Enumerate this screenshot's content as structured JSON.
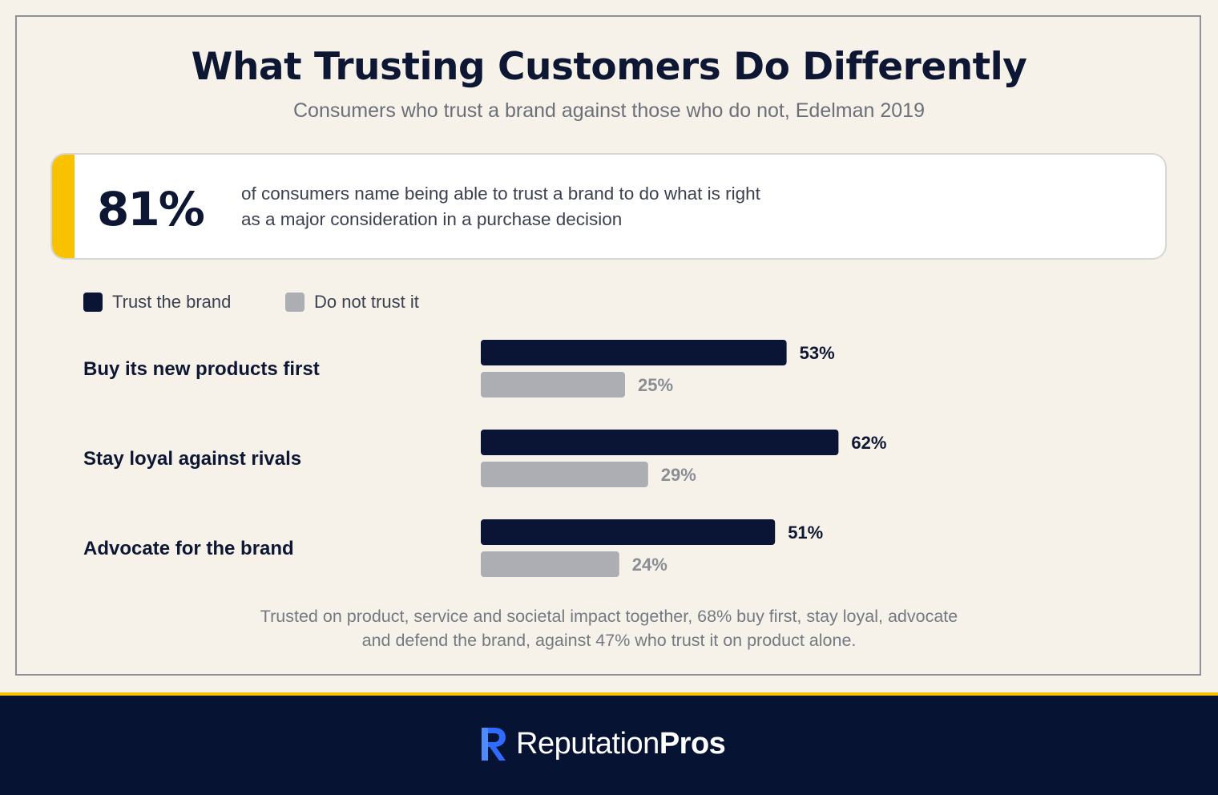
{
  "header": {
    "title": "What Trusting Customers Do Differently",
    "subtitle": "Consumers who trust a brand against those who do not, Edelman 2019"
  },
  "callout": {
    "stat": "81%",
    "text_line1": "of consumers name being able to trust a brand to do what is right",
    "text_line2": "as a major consideration in a purchase decision",
    "accent_color": "#f8c200"
  },
  "chart_data": {
    "type": "bar",
    "orientation": "horizontal",
    "categories": [
      "Buy its new products first",
      "Stay loyal against rivals",
      "Advocate for the brand"
    ],
    "series": [
      {
        "name": "Trust the brand",
        "values": [
          53,
          62,
          51
        ],
        "color": "#0a1535"
      },
      {
        "name": "Do not trust it",
        "values": [
          25,
          29,
          24
        ],
        "color": "#adaeb3"
      }
    ],
    "value_suffix": "%",
    "xlim": [
      0,
      100
    ],
    "grid": false,
    "legend_position": "top-left"
  },
  "footnote": {
    "line1": "Trusted on product, service and societal impact together, 68% buy first, stay loyal, advocate",
    "line2": "and defend the brand, against 47% who trust it on product alone."
  },
  "footer": {
    "brand_light": "Reputation",
    "brand_bold": "Pros",
    "logo_icon": "r-monogram-icon",
    "background_color": "#061333"
  }
}
